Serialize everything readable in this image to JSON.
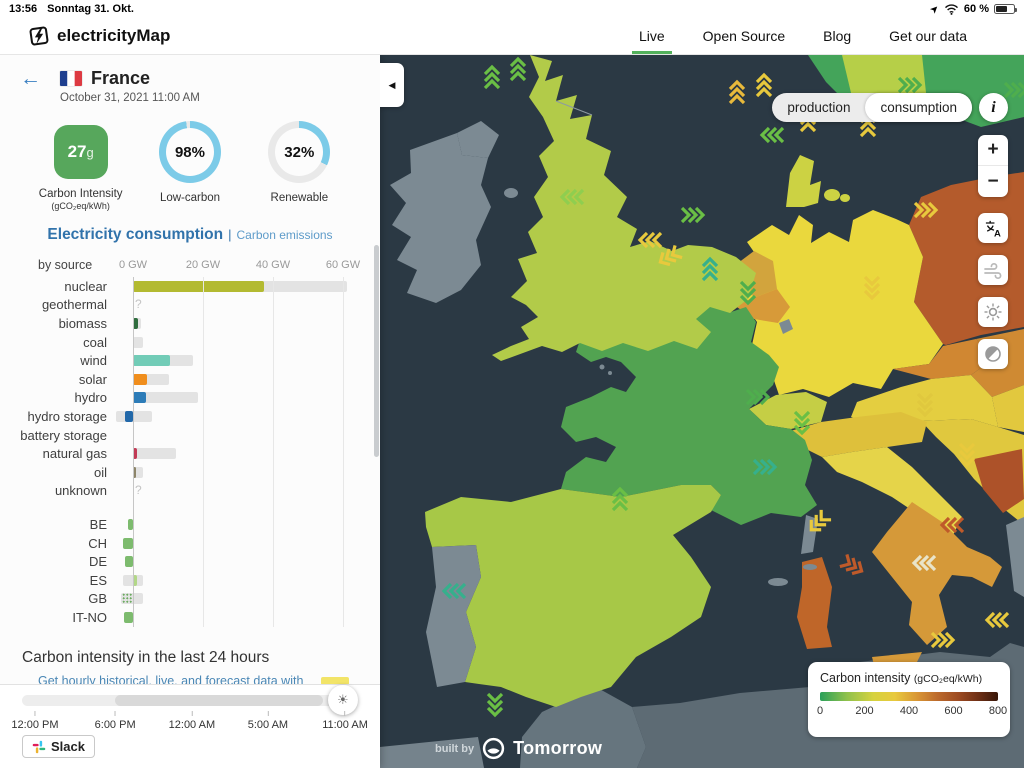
{
  "status_bar": {
    "time": "13:56",
    "date": "Sonntag 31. Okt.",
    "battery": "60 %"
  },
  "header": {
    "logo_text": "electricityMap",
    "nav": [
      {
        "label": "Live",
        "active": true
      },
      {
        "label": "Open Source",
        "active": false
      },
      {
        "label": "Blog",
        "active": false
      },
      {
        "label": "Get our data",
        "active": false
      }
    ]
  },
  "icons": {
    "back": "←",
    "collapse": "◀",
    "sun_handle": "☀",
    "info": "i"
  },
  "panel": {
    "country_name": "France",
    "country_flag": "FR",
    "datetime": "October 31, 2021 11:00 AM",
    "metrics": {
      "carbon_intensity": {
        "value": "27",
        "unit": "g",
        "label": "Carbon Intensity",
        "sublabel": "(gCO₂eq/kWh)",
        "color": "#57a75c"
      },
      "low_carbon": {
        "value": "98%",
        "pct": 98,
        "label": "Low-carbon"
      },
      "renewable": {
        "value": "32%",
        "pct": 32,
        "label": "Renewable"
      }
    },
    "tabs": {
      "active": "Electricity consumption",
      "separator": "|",
      "inactive": "Carbon emissions"
    },
    "chart": {
      "group_label": "by source",
      "axis_ticks": [
        "0 GW",
        "20 GW",
        "40 GW",
        "60 GW"
      ],
      "gw_per_tick": 20,
      "unknown_marker": "?",
      "sources": [
        {
          "label": "nuclear",
          "value_gw": 37.5,
          "cap_to": 61,
          "color": "#b3ba31"
        },
        {
          "label": "geothermal",
          "unknown": true
        },
        {
          "label": "biomass",
          "value_gw": 1.5,
          "cap_to": 2.2,
          "color": "#2f6d3e"
        },
        {
          "label": "coal",
          "value_gw": 0.3,
          "cap_to": 2.9,
          "color": "#a68c3c"
        },
        {
          "label": "wind",
          "value_gw": 10.6,
          "cap_to": 17.2,
          "color": "#72ccb7"
        },
        {
          "label": "solar",
          "value_gw": 3.9,
          "cap_to": 10.4,
          "color": "#f08e1d"
        },
        {
          "label": "hydro",
          "value_gw": 3.6,
          "cap_to": 18.6,
          "color": "#2d7cb8"
        },
        {
          "label": "hydro storage",
          "value_gw": -2.4,
          "cap_from": -4.9,
          "cap_to": 5.4,
          "color": "#2268a9"
        },
        {
          "label": "battery storage"
        },
        {
          "label": "natural gas",
          "value_gw": 1.2,
          "cap_to": 12.2,
          "color": "#c23a55"
        },
        {
          "label": "oil",
          "value_gw": 0.9,
          "cap_to": 2.9,
          "color": "#8c8468"
        },
        {
          "label": "unknown",
          "unknown": true
        }
      ],
      "exchanges": [
        {
          "code": "BE",
          "flag": "BE",
          "value_gw": -1.5,
          "color": "#7dbb6e"
        },
        {
          "code": "CH",
          "flag": "CH",
          "value_gw": -2.9,
          "color": "#7dbb6e"
        },
        {
          "code": "DE",
          "flag": "DE",
          "value_gw": -2.4,
          "color": "#7dbb6e"
        },
        {
          "code": "ES",
          "flag": "ES",
          "value_gw": 1.2,
          "cap_from": -2.9,
          "cap_to": 2.9,
          "color": "#b2d787"
        },
        {
          "code": "GB",
          "flag": "GB",
          "value_gw": -3.1,
          "cap_from": -3.4,
          "cap_to": 2.9,
          "color": "#6cab60",
          "dotted": true
        },
        {
          "code": "IT-NO",
          "flag": "IT",
          "value_gw": -2.5,
          "color": "#7dbb6e"
        }
      ]
    },
    "history_title": "Carbon intensity in the last 24 hours",
    "history_link": "Get hourly historical, live, and forecast data with",
    "timeline": {
      "ticks": [
        "12:00 PM",
        "6:00 PM",
        "12:00 AM",
        "5:00 AM",
        "11:00 AM"
      ]
    },
    "slack_label": "Slack"
  },
  "map": {
    "mode_toggle": {
      "options": [
        "production",
        "consumption"
      ],
      "selected": "consumption"
    },
    "zoom_in": "+",
    "zoom_out": "−",
    "legend": {
      "title": "Carbon intensity",
      "unit": "(gCO₂eq/kWh)",
      "ticks": [
        "0",
        "200",
        "400",
        "600",
        "800"
      ]
    },
    "built_by": {
      "prefix": "built by",
      "brand": "Tomorrow"
    }
  }
}
